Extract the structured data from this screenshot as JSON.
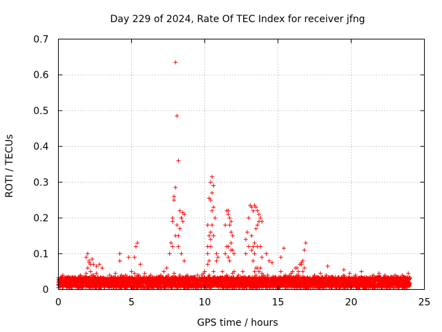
{
  "chart_data": {
    "type": "scatter",
    "title": "Day 229 of 2024, Rate Of TEC Index for receiver jfng",
    "xlabel": "GPS time / hours",
    "ylabel": "ROTI / TECUs",
    "xlim": [
      0,
      25
    ],
    "ylim": [
      0,
      0.7
    ],
    "x_ticks": [
      0,
      5,
      10,
      15,
      20,
      25
    ],
    "x_tick_labels": [
      "0",
      "5",
      "10",
      "15",
      "20",
      "25"
    ],
    "y_ticks": [
      0,
      0.1,
      0.2,
      0.3,
      0.4,
      0.5,
      0.6,
      0.7
    ],
    "y_tick_labels": [
      "0",
      "0.1",
      "0.2",
      "0.3",
      "0.4",
      "0.5",
      "0.6",
      "0.7"
    ],
    "grid": true,
    "marker": "+",
    "marker_color": "#ff0000",
    "series": [
      {
        "x": [
          0.0,
          0.2,
          0.4,
          0.6,
          0.8,
          1.0,
          1.2,
          1.4,
          1.6,
          1.8,
          2.0,
          2.2,
          2.4,
          2.6,
          2.8,
          3.0,
          3.2,
          3.4,
          3.6,
          3.8,
          4.0,
          4.2,
          4.4,
          4.6,
          4.8,
          5.0,
          5.2,
          5.4,
          5.6,
          5.8,
          6.0,
          6.2,
          6.4,
          6.6,
          6.8,
          7.0,
          7.2,
          7.4,
          7.6,
          7.8,
          8.0,
          8.2,
          8.4,
          8.6,
          8.8,
          9.0,
          9.2,
          9.4,
          9.6,
          9.8,
          10.0,
          10.2,
          10.4,
          10.6,
          10.8,
          11.0,
          11.2,
          11.4,
          11.6,
          11.8,
          12.0,
          12.2,
          12.4,
          12.6,
          12.8,
          13.0,
          13.2,
          13.4,
          13.6,
          13.8,
          14.0,
          14.2,
          14.4,
          14.6,
          14.8,
          15.0,
          15.2,
          15.4,
          15.6,
          15.8,
          16.0,
          16.2,
          16.4,
          16.6,
          16.8,
          17.0,
          17.2,
          17.4,
          17.6,
          17.8,
          18.0,
          18.2,
          18.4,
          18.6,
          18.8,
          19.0,
          19.2,
          19.4,
          19.6,
          19.8,
          20.0,
          20.2,
          20.4,
          20.6,
          20.8,
          21.0,
          21.2,
          21.4,
          21.6,
          21.8,
          22.0,
          22.2,
          22.4,
          22.6,
          22.8,
          23.0,
          23.2,
          23.4,
          23.6,
          23.8,
          24.0,
          0.1,
          0.5,
          0.9,
          1.3,
          1.7,
          2.1,
          2.5,
          2.9,
          3.3,
          3.7,
          4.1,
          4.5,
          4.9,
          5.3,
          5.7,
          6.1,
          6.5,
          6.9,
          7.3,
          7.7,
          8.1,
          8.5,
          8.9,
          9.3,
          9.7,
          10.1,
          10.5,
          10.9,
          11.3,
          11.7,
          12.1,
          12.5,
          12.9,
          13.3,
          13.7,
          14.1,
          14.5,
          14.9,
          15.3,
          15.7,
          16.1,
          16.5,
          16.9,
          17.3,
          17.7,
          18.1,
          18.5,
          18.9,
          19.3,
          19.7,
          20.1,
          20.5,
          20.9,
          21.3,
          21.7,
          22.1,
          22.5,
          22.9,
          23.3,
          23.7,
          1.9,
          2.0,
          2.1,
          2.2,
          2.3,
          2.1,
          2.4,
          2.6,
          2.8,
          3.0,
          4.2,
          4.2,
          4.8,
          5.2,
          5.3,
          5.4,
          5.6,
          7.8,
          7.9,
          8.0,
          8.0,
          8.1,
          8.2,
          8.3,
          8.4,
          8.5,
          8.6,
          7.7,
          7.8,
          7.9,
          8.1,
          8.2,
          8.3,
          8.4,
          8.5,
          10.2,
          10.3,
          10.4,
          10.5,
          10.6,
          10.4,
          10.5,
          10.6,
          10.3,
          10.4,
          10.2,
          10.5,
          10.7,
          10.8,
          10.9,
          10.6,
          10.3,
          10.4,
          10.5,
          10.2,
          11.4,
          11.5,
          11.6,
          11.7,
          11.8,
          11.9,
          12.0,
          11.6,
          11.7,
          11.8,
          11.5,
          11.9,
          11.7,
          11.8,
          11.6,
          12.8,
          12.9,
          13.0,
          13.1,
          13.2,
          13.3,
          13.4,
          13.5,
          13.6,
          13.7,
          13.8,
          13.9,
          13.2,
          13.3,
          13.4,
          13.5,
          13.6,
          13.7,
          13.8,
          13.9,
          13.3,
          13.5,
          13.7,
          13.4,
          13.6,
          14.2,
          14.4,
          14.6,
          15.2,
          15.4,
          15.2,
          16.3,
          16.5,
          16.7,
          16.8,
          16.9,
          16.7,
          16.4,
          16.6,
          18.4,
          19.5,
          20.7,
          21.8,
          23.0,
          0.3,
          0.7,
          1.1,
          1.5,
          1.9,
          2.3,
          2.7,
          3.1,
          3.5,
          3.9,
          4.3,
          4.7,
          5.1,
          5.5,
          5.9,
          6.3,
          6.7,
          7.1,
          7.5,
          7.9,
          8.3,
          8.7,
          9.1,
          9.5,
          9.9,
          10.3,
          10.7,
          11.1,
          11.5,
          11.9,
          12.3,
          12.7,
          13.1,
          13.5,
          13.9,
          14.3,
          14.7,
          15.1,
          15.5,
          15.9,
          16.3,
          16.7,
          17.1,
          17.5,
          17.9,
          18.3,
          18.7,
          19.1,
          19.5,
          19.9,
          20.3,
          20.7,
          21.1,
          21.5,
          21.9,
          22.3,
          22.7,
          23.1,
          23.5,
          23.9
        ],
        "y": [
          0.02,
          0.015,
          0.025,
          0.02,
          0.018,
          0.022,
          0.03,
          0.025,
          0.02,
          0.035,
          0.06,
          0.05,
          0.04,
          0.045,
          0.03,
          0.025,
          0.02,
          0.018,
          0.022,
          0.025,
          0.02,
          0.03,
          0.035,
          0.04,
          0.03,
          0.05,
          0.045,
          0.04,
          0.03,
          0.035,
          0.025,
          0.03,
          0.02,
          0.025,
          0.035,
          0.04,
          0.05,
          0.06,
          0.1,
          0.12,
          0.15,
          0.12,
          0.1,
          0.08,
          0.04,
          0.03,
          0.025,
          0.02,
          0.03,
          0.04,
          0.05,
          0.1,
          0.12,
          0.15,
          0.08,
          0.03,
          0.05,
          0.1,
          0.12,
          0.11,
          0.05,
          0.03,
          0.02,
          0.05,
          0.1,
          0.12,
          0.11,
          0.13,
          0.12,
          0.06,
          0.04,
          0.03,
          0.025,
          0.02,
          0.03,
          0.03,
          0.025,
          0.02,
          0.03,
          0.04,
          0.05,
          0.06,
          0.05,
          0.07,
          0.06,
          0.03,
          0.02,
          0.025,
          0.03,
          0.02,
          0.03,
          0.025,
          0.02,
          0.018,
          0.022,
          0.03,
          0.025,
          0.02,
          0.018,
          0.022,
          0.02,
          0.015,
          0.02,
          0.018,
          0.02,
          0.025,
          0.02,
          0.018,
          0.02,
          0.022,
          0.025,
          0.02,
          0.018,
          0.02,
          0.022,
          0.02,
          0.018,
          0.02,
          0.022,
          0.02,
          0.018,
          0.012,
          0.01,
          0.015,
          0.012,
          0.01,
          0.012,
          0.015,
          0.012,
          0.01,
          0.015,
          0.012,
          0.01,
          0.015,
          0.012,
          0.01,
          0.012,
          0.015,
          0.012,
          0.01,
          0.015,
          0.012,
          0.01,
          0.015,
          0.012,
          0.01,
          0.012,
          0.015,
          0.012,
          0.01,
          0.015,
          0.012,
          0.01,
          0.015,
          0.012,
          0.01,
          0.012,
          0.015,
          0.012,
          0.01,
          0.015,
          0.012,
          0.01,
          0.015,
          0.012,
          0.01,
          0.012,
          0.015,
          0.012,
          0.01,
          0.015,
          0.012,
          0.01,
          0.015,
          0.012,
          0.01,
          0.012,
          0.015,
          0.012,
          0.01,
          0.015,
          0.09,
          0.1,
          0.08,
          0.07,
          0.085,
          0.075,
          0.07,
          0.065,
          0.07,
          0.06,
          0.1,
          0.08,
          0.09,
          0.09,
          0.12,
          0.13,
          0.07,
          0.2,
          0.25,
          0.285,
          0.635,
          0.485,
          0.36,
          0.22,
          0.2,
          0.19,
          0.21,
          0.13,
          0.19,
          0.26,
          0.18,
          0.15,
          0.17,
          0.2,
          0.215,
          0.18,
          0.255,
          0.3,
          0.315,
          0.29,
          0.25,
          0.22,
          0.23,
          0.15,
          0.14,
          0.12,
          0.27,
          0.2,
          0.1,
          0.09,
          0.05,
          0.08,
          0.16,
          0.18,
          0.07,
          0.18,
          0.22,
          0.22,
          0.2,
          0.19,
          0.15,
          0.1,
          0.21,
          0.18,
          0.16,
          0.12,
          0.11,
          0.08,
          0.13,
          0.09,
          0.14,
          0.16,
          0.2,
          0.235,
          0.23,
          0.22,
          0.235,
          0.23,
          0.22,
          0.21,
          0.2,
          0.19,
          0.15,
          0.12,
          0.1,
          0.17,
          0.18,
          0.19,
          0.12,
          0.09,
          0.08,
          0.06,
          0.05,
          0.05,
          0.06,
          0.1,
          0.08,
          0.075,
          0.09,
          0.115,
          0.05,
          0.06,
          0.07,
          0.08,
          0.11,
          0.13,
          0.05,
          0.04,
          0.075,
          0.065,
          0.055,
          0.05,
          0.035,
          0.04,
          0.04,
          0.035,
          0.03,
          0.04,
          0.045,
          0.04,
          0.035,
          0.03,
          0.04,
          0.045,
          0.04,
          0.035,
          0.03,
          0.04,
          0.045,
          0.04,
          0.035,
          0.03,
          0.04,
          0.045,
          0.04,
          0.035,
          0.03,
          0.04,
          0.045,
          0.04,
          0.035,
          0.03,
          0.04,
          0.045,
          0.04,
          0.035,
          0.03,
          0.04,
          0.045,
          0.04,
          0.035,
          0.03,
          0.04,
          0.045,
          0.04,
          0.035,
          0.03,
          0.04,
          0.045,
          0.04,
          0.035,
          0.03,
          0.04,
          0.045,
          0.04,
          0.035,
          0.03,
          0.04,
          0.045,
          0.04,
          0.035,
          0.03,
          0.04,
          0.045
        ]
      }
    ]
  }
}
